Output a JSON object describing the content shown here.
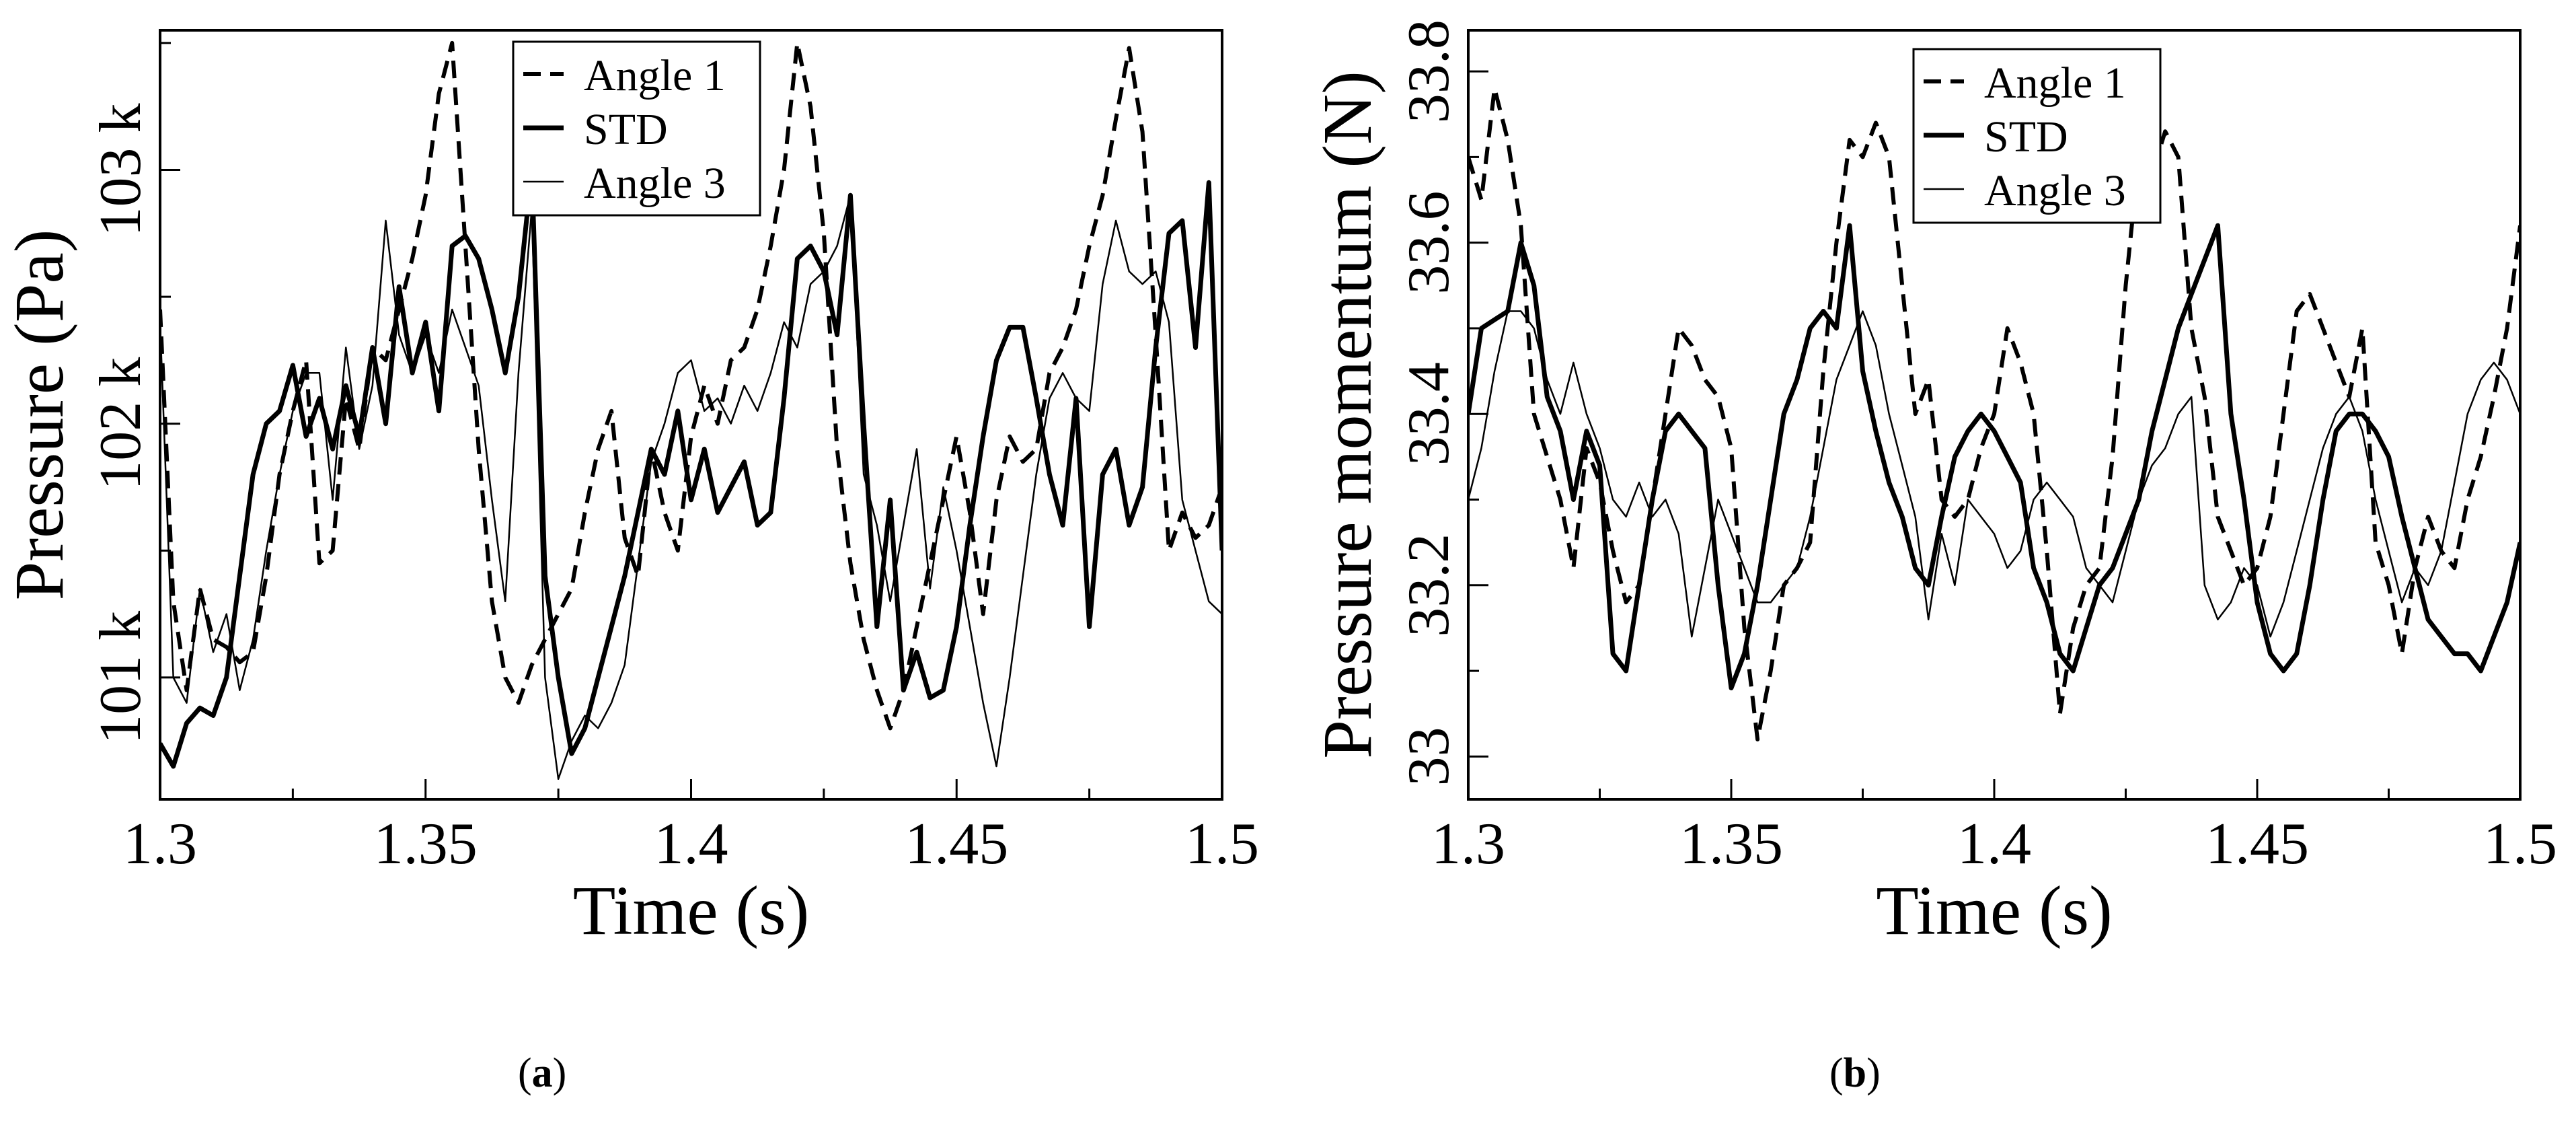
{
  "figure": {
    "subcaptions": [
      "(a)",
      "(b)"
    ],
    "subcaption_letters": [
      "a",
      "b"
    ]
  },
  "chart_data": [
    {
      "type": "line",
      "id": "a",
      "title": "",
      "xlabel": "Time (s)",
      "ylabel": "Pressure (Pa)",
      "xlim": [
        1.3,
        1.5
      ],
      "ylim": [
        100520,
        103550
      ],
      "xticks": [
        1.3,
        1.35,
        1.4,
        1.45,
        1.5
      ],
      "xtick_labels": [
        "1.3",
        "1.35",
        "1.4",
        "1.45",
        "1.5"
      ],
      "xminor_ticks": [
        1.325,
        1.375,
        1.425,
        1.475
      ],
      "yticks": [
        101000,
        102000,
        103000
      ],
      "ytick_labels": [
        "101 k",
        "102 k",
        "103 k"
      ],
      "yminor_ticks": [
        101500,
        102500,
        103500
      ],
      "grid": false,
      "legend": {
        "position": "upper center",
        "entries": [
          "Angle 1",
          "STD",
          "Angle 3"
        ]
      },
      "x_start": 1.3,
      "x_step": 0.0025,
      "series": [
        {
          "name": "Angle 1",
          "style": "dashed",
          "width": 6,
          "values": [
            102450,
            101300,
            100950,
            101350,
            101150,
            101120,
            101060,
            101100,
            101400,
            101800,
            102050,
            102250,
            101450,
            101500,
            102100,
            101900,
            102300,
            102250,
            102450,
            102650,
            102900,
            103300,
            103500,
            102700,
            101900,
            101300,
            101000,
            100900,
            101050,
            101150,
            101250,
            101350,
            101650,
            101900,
            102050,
            101550,
            101400,
            101900,
            101650,
            101500,
            101950,
            102150,
            102000,
            102250,
            102300,
            102450,
            102700,
            103000,
            103500,
            103250,
            102750,
            101900,
            101450,
            101150,
            100950,
            100800,
            100950,
            101200,
            101450,
            101700,
            101950,
            101650,
            101250,
            101700,
            101950,
            101850,
            101900,
            102200,
            102300,
            102450,
            102700,
            102900,
            103200,
            103480,
            103150,
            102350,
            101500,
            101650,
            101550,
            101600,
            101750
          ]
        },
        {
          "name": "STD",
          "style": "solid",
          "width": 7,
          "values": [
            100740,
            100650,
            100820,
            100880,
            100850,
            101000,
            101400,
            101800,
            102000,
            102050,
            102230,
            101950,
            102100,
            101900,
            102150,
            101950,
            102300,
            102000,
            102540,
            102200,
            102400,
            102050,
            102700,
            102740,
            102650,
            102450,
            102200,
            102500,
            103000,
            101400,
            101000,
            100700,
            100800,
            101000,
            101200,
            101400,
            101650,
            101900,
            101800,
            102050,
            101700,
            101900,
            101650,
            101750,
            101850,
            101600,
            101650,
            102100,
            102650,
            102700,
            102600,
            102350,
            102900,
            102000,
            101200,
            101700,
            100950,
            101100,
            100920,
            100950,
            101200,
            101600,
            101950,
            102250,
            102380,
            102380,
            102100,
            101800,
            101600,
            102100,
            101200,
            101800,
            101900,
            101600,
            101750,
            102300,
            102750,
            102800,
            102300,
            102950,
            101500
          ]
        },
        {
          "name": "Angle 3",
          "style": "solid",
          "width": 2.5,
          "values": [
            102400,
            101000,
            100900,
            101350,
            101100,
            101250,
            100950,
            101150,
            101500,
            101800,
            102050,
            102200,
            102200,
            101700,
            102300,
            101900,
            102150,
            102800,
            102350,
            102200,
            102350,
            102200,
            102450,
            102300,
            102150,
            101700,
            101300,
            102200,
            102850,
            101000,
            100600,
            100750,
            100850,
            100800,
            100900,
            101050,
            101450,
            101850,
            102000,
            102200,
            102250,
            102050,
            102100,
            102000,
            102150,
            102050,
            102200,
            102400,
            102300,
            102550,
            102600,
            102700,
            102900,
            101800,
            101600,
            101300,
            101600,
            101900,
            101350,
            101750,
            101500,
            101200,
            100900,
            100650,
            101000,
            101400,
            101800,
            102100,
            102200,
            102100,
            102050,
            102550,
            102800,
            102600,
            102550,
            102600,
            102400,
            101700,
            101500,
            101300,
            101250
          ]
        }
      ]
    },
    {
      "type": "line",
      "id": "b",
      "title": "",
      "xlabel": "Time (s)",
      "ylabel": "Pressure momentum (N)",
      "xlim": [
        1.3,
        1.5
      ],
      "ylim": [
        32.95,
        33.848
      ],
      "xticks": [
        1.3,
        1.35,
        1.4,
        1.45,
        1.5
      ],
      "xtick_labels": [
        "1.3",
        "1.35",
        "1.4",
        "1.45",
        "1.5"
      ],
      "xminor_ticks": [
        1.325,
        1.375,
        1.425,
        1.475
      ],
      "yticks": [
        33.0,
        33.2,
        33.4,
        33.6,
        33.8
      ],
      "ytick_labels": [
        "33",
        "33.2",
        "33.4",
        "33.6",
        "33.8"
      ],
      "yminor_ticks": [
        33.1,
        33.3,
        33.5,
        33.7
      ],
      "grid": false,
      "legend": {
        "position": "upper center",
        "entries": [
          "Angle 1",
          "STD",
          "Angle 3"
        ]
      },
      "x_start": 1.3,
      "x_step": 0.0025,
      "series": [
        {
          "name": "Angle 1",
          "style": "dashed",
          "width": 6,
          "values": [
            33.7,
            33.65,
            33.78,
            33.72,
            33.62,
            33.4,
            33.35,
            33.3,
            33.22,
            33.36,
            33.32,
            33.24,
            33.18,
            33.2,
            33.3,
            33.4,
            33.5,
            33.48,
            33.44,
            33.42,
            33.36,
            33.15,
            33.02,
            33.1,
            33.2,
            33.22,
            33.25,
            33.45,
            33.6,
            33.72,
            33.7,
            33.74,
            33.7,
            33.55,
            33.4,
            33.44,
            33.3,
            33.28,
            33.3,
            33.36,
            33.4,
            33.5,
            33.46,
            33.4,
            33.24,
            33.05,
            33.15,
            33.2,
            33.22,
            33.35,
            33.55,
            33.7,
            33.68,
            33.73,
            33.7,
            33.5,
            33.42,
            33.28,
            33.24,
            33.2,
            33.22,
            33.28,
            33.4,
            33.52,
            33.54,
            33.5,
            33.46,
            33.42,
            33.5,
            33.25,
            33.2,
            33.12,
            33.22,
            33.28,
            33.24,
            33.22,
            33.3,
            33.35,
            33.42,
            33.5,
            33.62
          ]
        },
        {
          "name": "STD",
          "style": "solid",
          "width": 7,
          "values": [
            33.4,
            33.5,
            33.51,
            33.52,
            33.6,
            33.55,
            33.42,
            33.38,
            33.3,
            33.38,
            33.34,
            33.12,
            33.1,
            33.2,
            33.3,
            33.38,
            33.4,
            33.38,
            33.36,
            33.2,
            33.08,
            33.12,
            33.2,
            33.3,
            33.4,
            33.44,
            33.5,
            33.52,
            33.5,
            33.62,
            33.45,
            33.38,
            33.32,
            33.28,
            33.22,
            33.2,
            33.28,
            33.35,
            33.38,
            33.4,
            33.38,
            33.35,
            33.32,
            33.22,
            33.18,
            33.12,
            33.1,
            33.15,
            33.2,
            33.22,
            33.26,
            33.3,
            33.38,
            33.44,
            33.5,
            33.54,
            33.58,
            33.62,
            33.4,
            33.3,
            33.18,
            33.12,
            33.1,
            33.12,
            33.2,
            33.3,
            33.38,
            33.4,
            33.4,
            33.38,
            33.35,
            33.28,
            33.22,
            33.16,
            33.14,
            33.12,
            33.12,
            33.1,
            33.14,
            33.18,
            33.25
          ]
        },
        {
          "name": "Angle 3",
          "style": "solid",
          "width": 2.5,
          "values": [
            33.3,
            33.36,
            33.45,
            33.52,
            33.52,
            33.5,
            33.44,
            33.4,
            33.46,
            33.4,
            33.36,
            33.3,
            33.28,
            33.32,
            33.28,
            33.3,
            33.26,
            33.14,
            33.22,
            33.3,
            33.26,
            33.22,
            33.18,
            33.18,
            33.2,
            33.22,
            33.28,
            33.36,
            33.44,
            33.48,
            33.52,
            33.48,
            33.4,
            33.34,
            33.28,
            33.16,
            33.26,
            33.2,
            33.3,
            33.28,
            33.26,
            33.22,
            33.24,
            33.3,
            33.32,
            33.3,
            33.28,
            33.22,
            33.2,
            33.18,
            33.24,
            33.3,
            33.34,
            33.36,
            33.4,
            33.42,
            33.2,
            33.16,
            33.18,
            33.22,
            33.2,
            33.14,
            33.18,
            33.24,
            33.3,
            33.36,
            33.4,
            33.42,
            33.38,
            33.3,
            33.24,
            33.18,
            33.22,
            33.2,
            33.24,
            33.32,
            33.4,
            33.44,
            33.46,
            33.44,
            33.4
          ]
        }
      ]
    }
  ]
}
